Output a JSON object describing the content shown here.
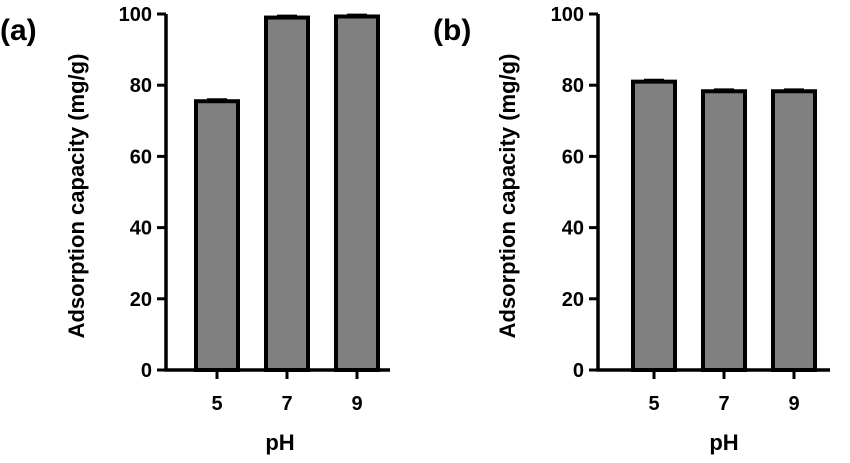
{
  "chart_data": [
    {
      "type": "bar",
      "panel_label": "(a)",
      "categories": [
        "5",
        "7",
        "9"
      ],
      "values": [
        75.5,
        99.0,
        99.3
      ],
      "errors": [
        0.4,
        0.4,
        0.4
      ],
      "xlabel": "pH",
      "ylabel": "Adsorption capacity (mg/g)",
      "ylim": [
        0,
        100
      ],
      "yticks": [
        "0",
        "20",
        "40",
        "60",
        "80",
        "100"
      ],
      "grid": false,
      "colors": {
        "bar": "#808080",
        "edge": "#000000"
      }
    },
    {
      "type": "bar",
      "panel_label": "(b)",
      "categories": [
        "5",
        "7",
        "9"
      ],
      "values": [
        81.0,
        78.3,
        78.3
      ],
      "errors": [
        0.4,
        0.4,
        0.4
      ],
      "xlabel": "pH",
      "ylabel": "Adsorption capacity (mg/g)",
      "ylim": [
        0,
        100
      ],
      "yticks": [
        "0",
        "20",
        "40",
        "60",
        "80",
        "100"
      ],
      "grid": false,
      "colors": {
        "bar": "#808080",
        "edge": "#000000"
      }
    }
  ]
}
